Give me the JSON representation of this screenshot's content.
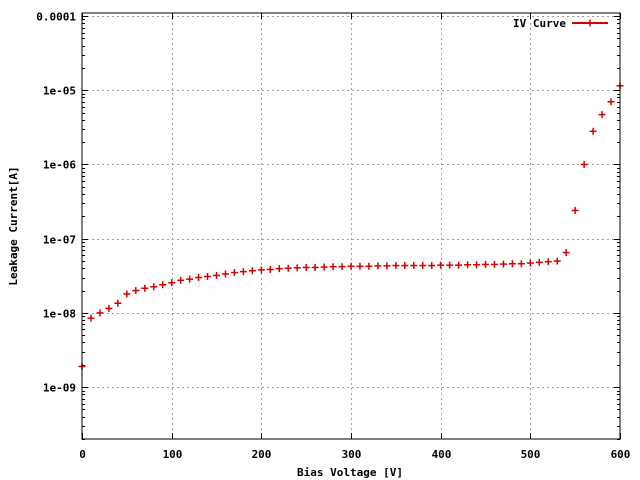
{
  "chart_data": {
    "type": "scatter",
    "xlabel": "Bias Voltage [V]",
    "ylabel": "Leakage Current[A]",
    "x_tick_labels": [
      "0",
      "100",
      "200",
      "300",
      "400",
      "500",
      "600"
    ],
    "x_ticks": [
      0,
      100,
      200,
      300,
      400,
      500,
      600
    ],
    "xlim": [
      0,
      600
    ],
    "y_tick_labels": [
      "1e-09",
      "1e-08",
      "1e-07",
      "1e-06",
      "1e-05",
      "0.0001"
    ],
    "y_ticks": [
      1e-09,
      1e-08,
      1e-07,
      1e-06,
      1e-05,
      0.0001
    ],
    "y_scale": "log",
    "ylim": [
      2e-10,
      0.00011
    ],
    "grid": true,
    "legend_position": "top-right",
    "series": [
      {
        "name": "IV Curve",
        "color": "#d40000",
        "marker": "plus",
        "x": [
          0,
          10,
          20,
          30,
          40,
          50,
          60,
          70,
          80,
          90,
          100,
          110,
          120,
          130,
          140,
          150,
          160,
          170,
          180,
          190,
          200,
          210,
          220,
          230,
          240,
          250,
          260,
          270,
          280,
          290,
          300,
          310,
          320,
          330,
          340,
          350,
          360,
          370,
          380,
          390,
          400,
          410,
          420,
          430,
          440,
          450,
          460,
          470,
          480,
          490,
          500,
          510,
          520,
          530,
          540,
          550,
          560,
          570,
          580,
          590,
          600
        ],
        "y": [
          1.9e-09,
          8.5e-09,
          1e-08,
          1.15e-08,
          1.35e-08,
          1.8e-08,
          2e-08,
          2.15e-08,
          2.25e-08,
          2.4e-08,
          2.55e-08,
          2.75e-08,
          2.85e-08,
          3e-08,
          3.1e-08,
          3.2e-08,
          3.35e-08,
          3.5e-08,
          3.6e-08,
          3.7e-08,
          3.8e-08,
          3.85e-08,
          3.95e-08,
          4e-08,
          4.05e-08,
          4.1e-08,
          4.1e-08,
          4.15e-08,
          4.2e-08,
          4.2e-08,
          4.25e-08,
          4.25e-08,
          4.25e-08,
          4.3e-08,
          4.3e-08,
          4.35e-08,
          4.35e-08,
          4.35e-08,
          4.35e-08,
          4.35e-08,
          4.4e-08,
          4.4e-08,
          4.4e-08,
          4.45e-08,
          4.45e-08,
          4.5e-08,
          4.5e-08,
          4.55e-08,
          4.6e-08,
          4.6e-08,
          4.7e-08,
          4.8e-08,
          4.9e-08,
          5e-08,
          6.5e-08,
          2.4e-07,
          1e-06,
          2.8e-06,
          4.7e-06,
          7e-06,
          1.15e-05
        ]
      }
    ]
  }
}
